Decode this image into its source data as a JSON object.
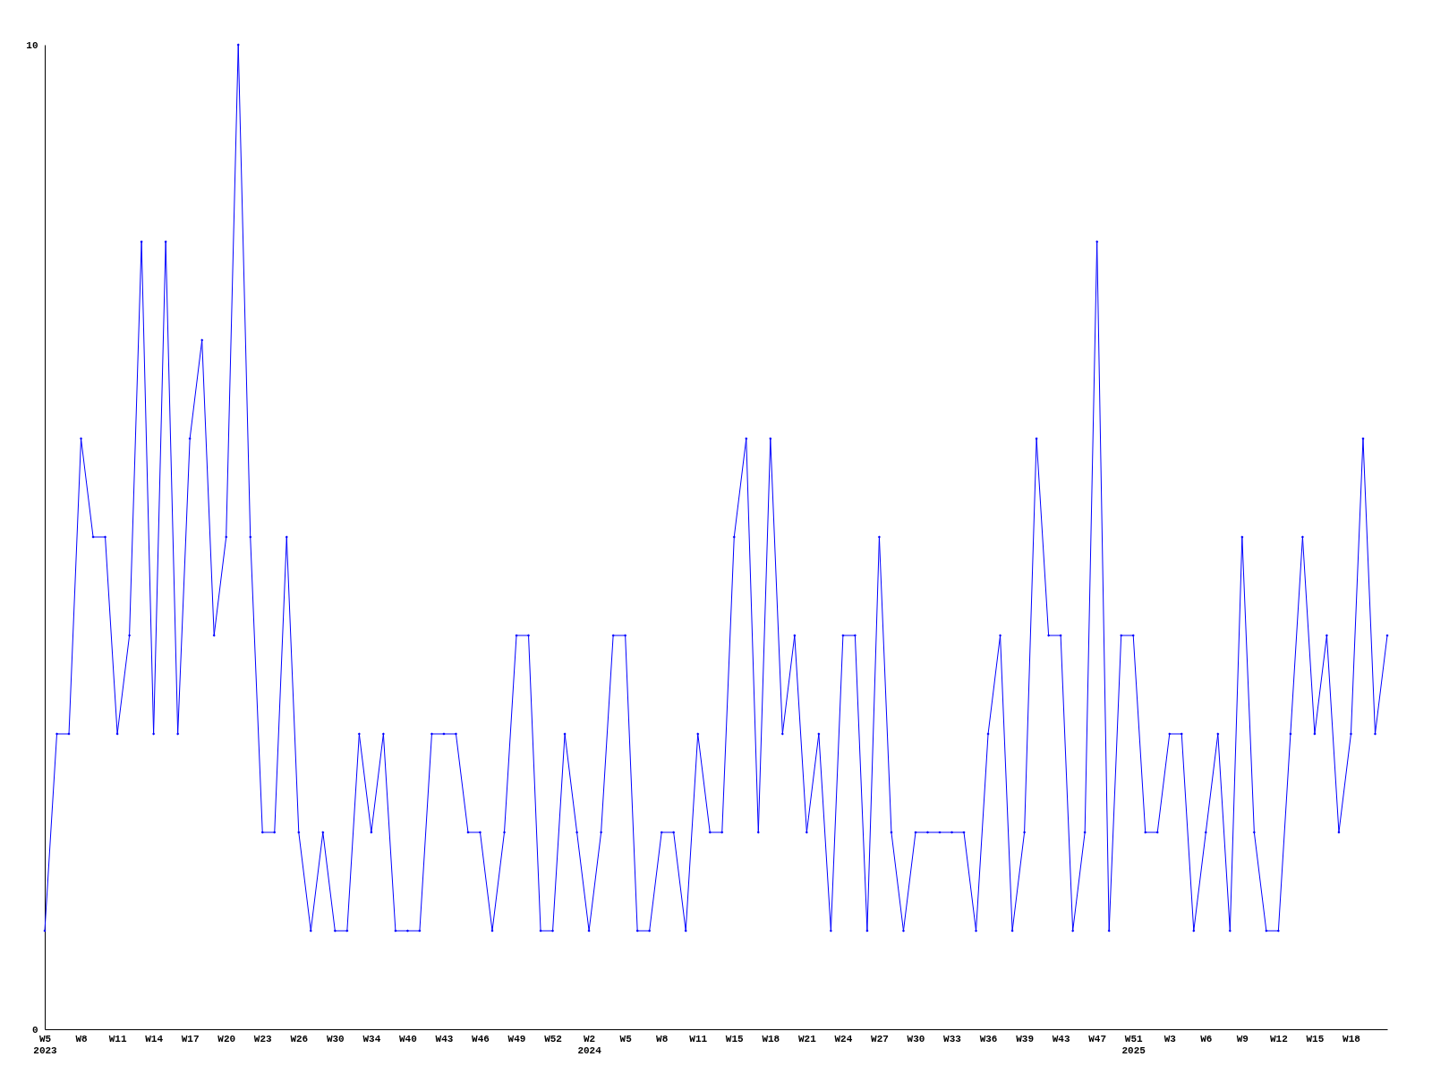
{
  "chart_data": {
    "type": "line",
    "categories": [
      "W5\n2023",
      null,
      null,
      "W8",
      null,
      null,
      "W11",
      null,
      null,
      "W14",
      null,
      null,
      "W17",
      null,
      null,
      "W20",
      null,
      null,
      "W23",
      null,
      null,
      "W26",
      null,
      null,
      "W30",
      null,
      null,
      "W34",
      null,
      null,
      "W40",
      null,
      null,
      "W43",
      null,
      null,
      "W46",
      null,
      null,
      "W49",
      null,
      null,
      "W52",
      null,
      null,
      "W2\n2024",
      null,
      null,
      "W5",
      null,
      null,
      "W8",
      null,
      null,
      "W11",
      null,
      null,
      "W15",
      null,
      null,
      "W18",
      null,
      null,
      "W21",
      null,
      null,
      "W24",
      null,
      null,
      "W27",
      null,
      null,
      "W30",
      null,
      null,
      "W33",
      null,
      null,
      "W36",
      null,
      null,
      "W39",
      null,
      null,
      "W43",
      null,
      null,
      "W47",
      null,
      null,
      "W51\n2025",
      null,
      null,
      "W3",
      null,
      null,
      "W6",
      null,
      null,
      "W9",
      null,
      null,
      "W12",
      null,
      null,
      "W15",
      null,
      null,
      "W18",
      null,
      null,
      null
    ],
    "series": [
      {
        "color": "#0000ff",
        "values": [
          1,
          3,
          3,
          6,
          5,
          5,
          3,
          4,
          8,
          3,
          8,
          3,
          6,
          7,
          4,
          5,
          10,
          5,
          2,
          2,
          5,
          2,
          1,
          2,
          1,
          1,
          3,
          2,
          3,
          1,
          1,
          1,
          3,
          3,
          3,
          2,
          2,
          1,
          2,
          4,
          4,
          1,
          1,
          3,
          2,
          1,
          2,
          4,
          4,
          1,
          1,
          2,
          2,
          1,
          3,
          2,
          2,
          5,
          6,
          2,
          6,
          3,
          4,
          2,
          3,
          1,
          4,
          4,
          1,
          5,
          2,
          1,
          2,
          2,
          2,
          2,
          2,
          1,
          3,
          4,
          1,
          2,
          6,
          4,
          4,
          1,
          2,
          8,
          1,
          4,
          4,
          2,
          2,
          3,
          3,
          1,
          2,
          3,
          1,
          5,
          2,
          1,
          1,
          3,
          5,
          3,
          4,
          2,
          3,
          6,
          3,
          4
        ]
      }
    ],
    "ylim": [
      0,
      10
    ],
    "yticks": [
      0,
      10
    ],
    "marker": "diamond",
    "legend": false
  }
}
